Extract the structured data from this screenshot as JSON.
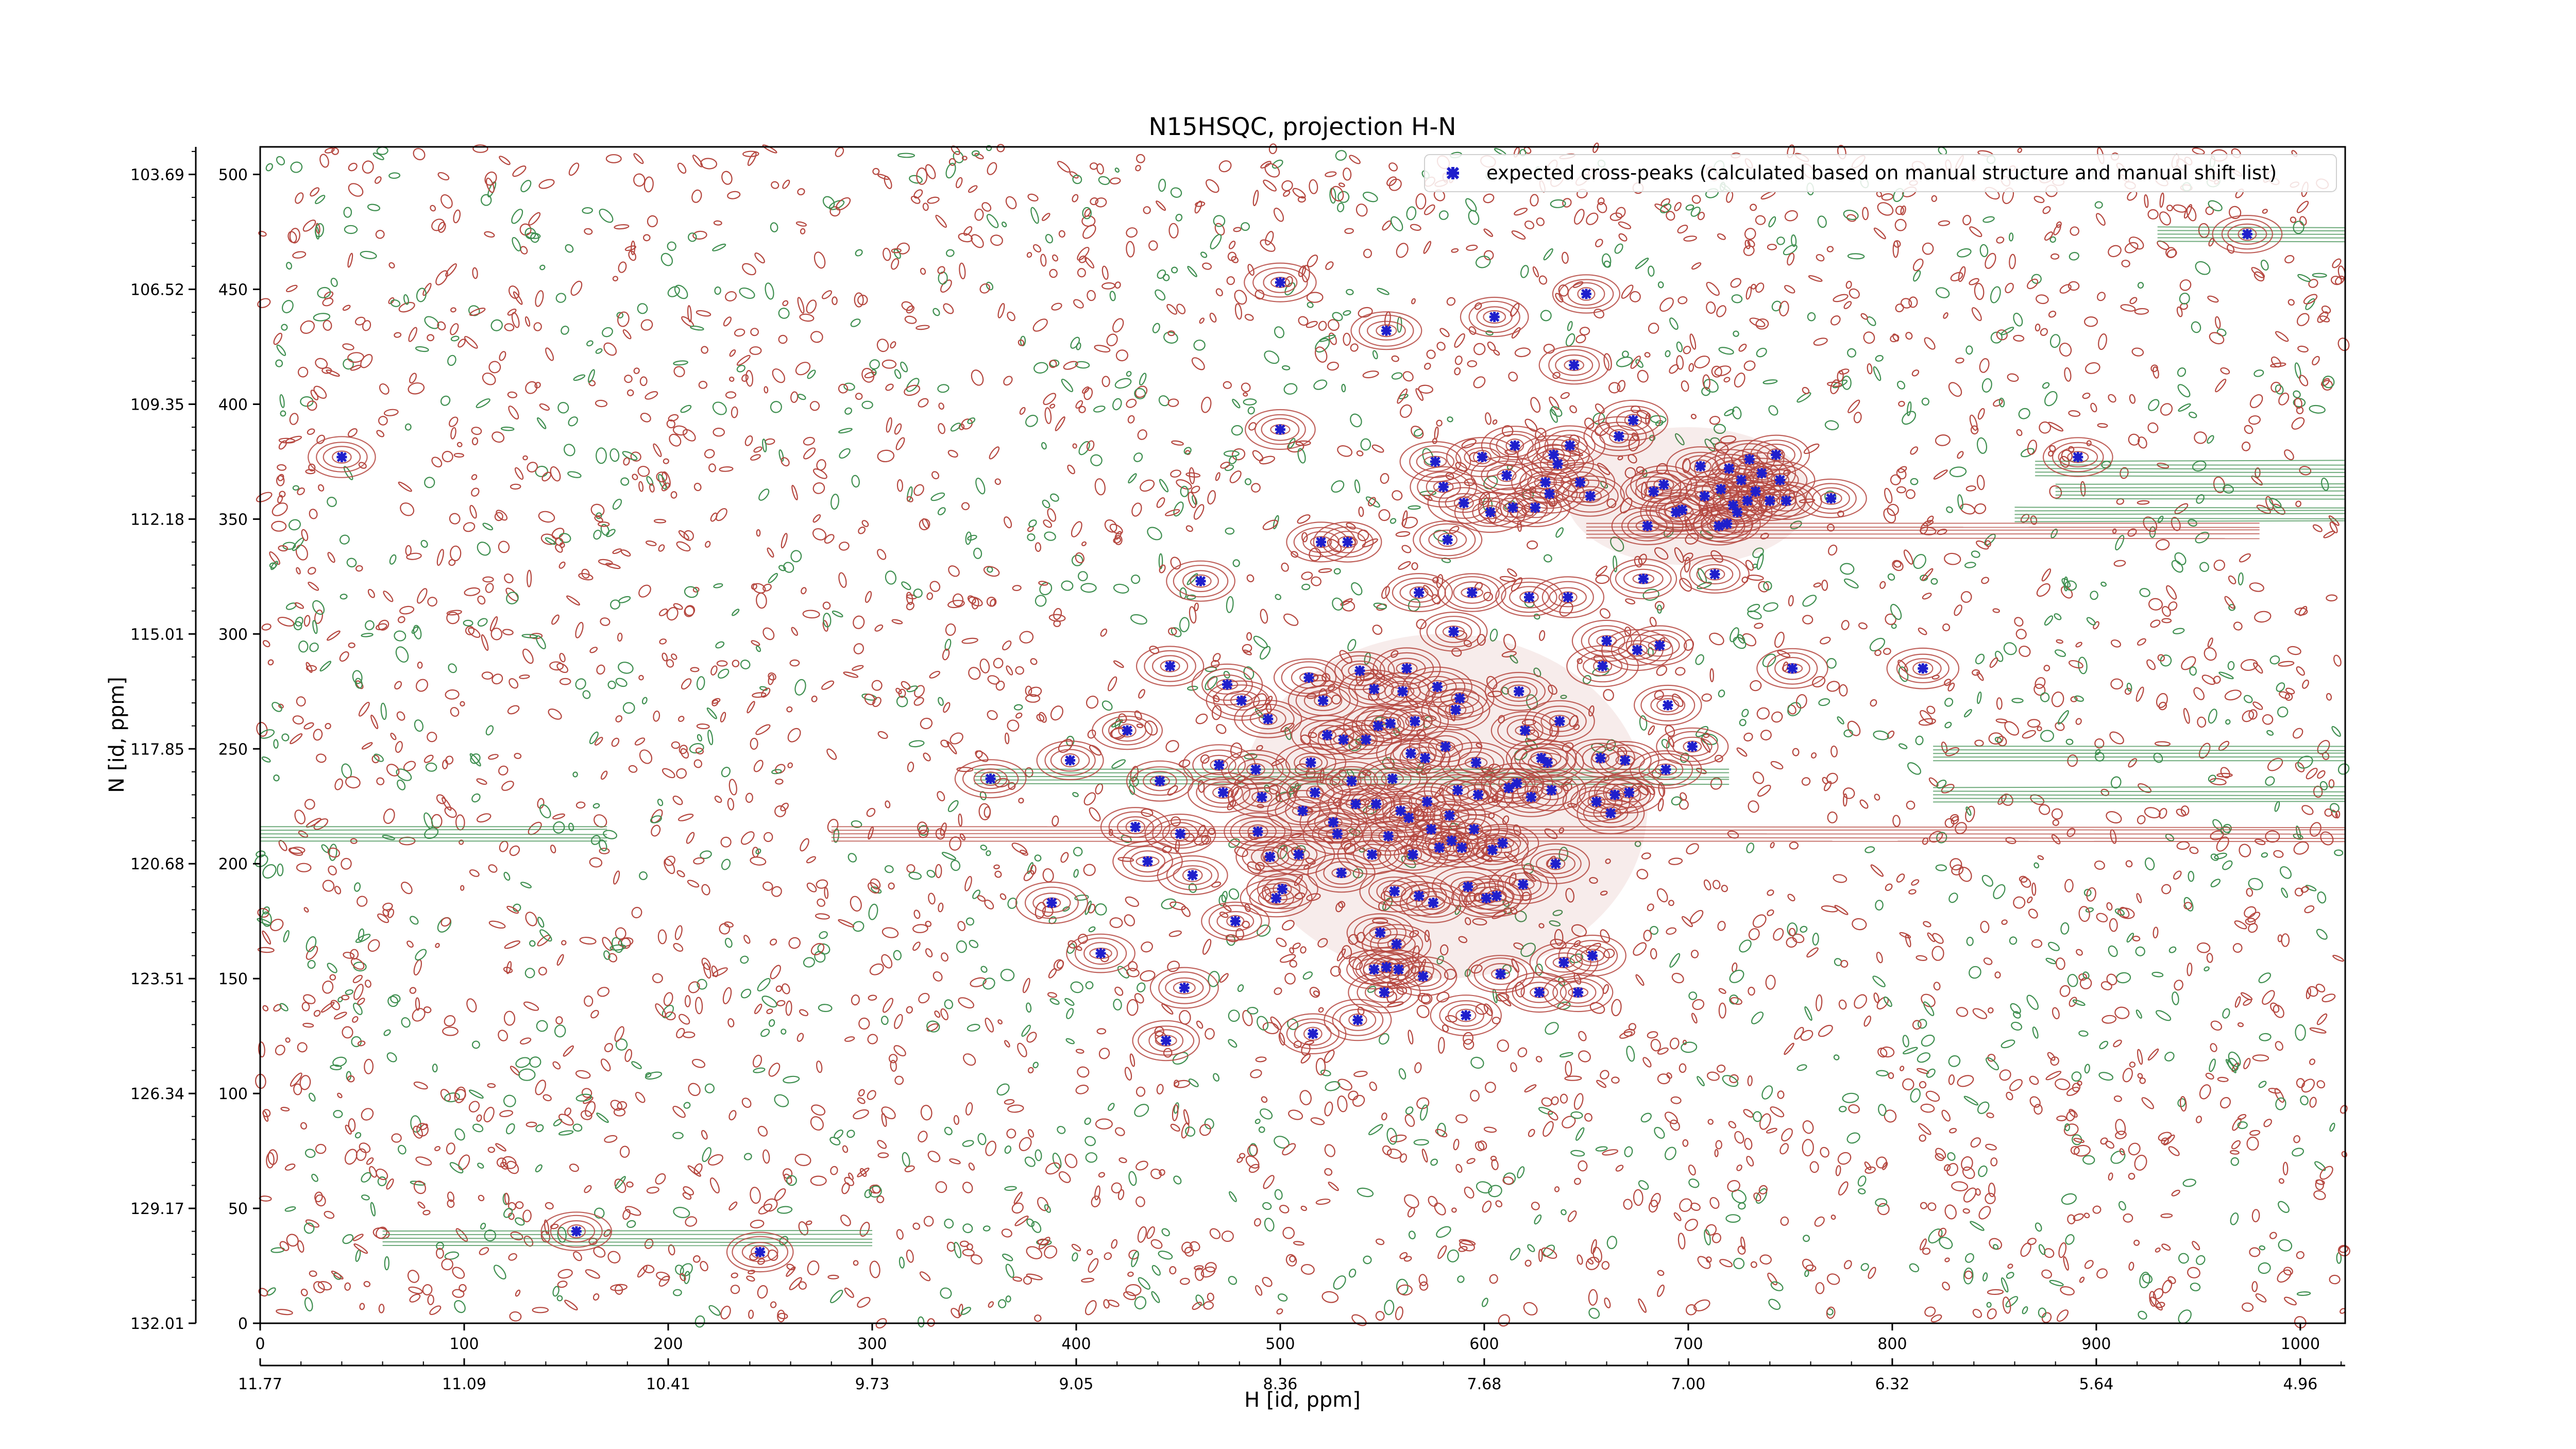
{
  "chart_data": {
    "type": "scatter",
    "title": "N15HSQC, projection H-N",
    "xlabel": "H [id, ppm]",
    "ylabel": "N [id, ppm]",
    "x_index_range": [
      0,
      1022
    ],
    "y_index_range": [
      0,
      512
    ],
    "x_ticks": [
      0,
      100,
      200,
      300,
      400,
      500,
      600,
      700,
      800,
      900,
      1000
    ],
    "y_ticks": [
      0,
      50,
      100,
      150,
      200,
      250,
      300,
      350,
      400,
      450,
      500
    ],
    "x_ppm_ticks": [
      "11.77",
      "11.09",
      "10.41",
      "9.73",
      "9.05",
      "8.36",
      "7.68",
      "7.00",
      "6.32",
      "5.64",
      "4.96"
    ],
    "y_ppm_ticks": [
      "132.01",
      "129.17",
      "126.34",
      "123.51",
      "120.68",
      "117.85",
      "115.01",
      "112.18",
      "109.35",
      "106.52",
      "103.69"
    ],
    "legend": {
      "position": "top-right",
      "label": "expected cross-peaks (calculated based on manual structure and manual shift list)",
      "marker_color": "#1f1fcc"
    },
    "colors": {
      "positive_contour": "#b5473f",
      "negative_contour": "#3f8f50",
      "peak_marker": "#1f1fcc"
    },
    "series": [
      {
        "name": "expected cross-peaks (calculated based on manual structure and manual shift list)",
        "points": [
          [
            40,
            377
          ],
          [
            155,
            40
          ],
          [
            245,
            31
          ],
          [
            358,
            237
          ],
          [
            388,
            183
          ],
          [
            397,
            245
          ],
          [
            412,
            161
          ],
          [
            425,
            258
          ],
          [
            429,
            216
          ],
          [
            435,
            201
          ],
          [
            441,
            236
          ],
          [
            444,
            123
          ],
          [
            446,
            286
          ],
          [
            451,
            213
          ],
          [
            453,
            146
          ],
          [
            457,
            195
          ],
          [
            461,
            323
          ],
          [
            470,
            243
          ],
          [
            472,
            231
          ],
          [
            474,
            278
          ],
          [
            478,
            175
          ],
          [
            481,
            271
          ],
          [
            488,
            241
          ],
          [
            489,
            214
          ],
          [
            491,
            229
          ],
          [
            494,
            263
          ],
          [
            495,
            203
          ],
          [
            498,
            185
          ],
          [
            500,
            453
          ],
          [
            500,
            389
          ],
          [
            501,
            189
          ],
          [
            509,
            204
          ],
          [
            511,
            223
          ],
          [
            514,
            281
          ],
          [
            515,
            244
          ],
          [
            516,
            126
          ],
          [
            517,
            231
          ],
          [
            520,
            340
          ],
          [
            521,
            271
          ],
          [
            523,
            256
          ],
          [
            526,
            218
          ],
          [
            528,
            213
          ],
          [
            530,
            196
          ],
          [
            531,
            254
          ],
          [
            533,
            340
          ],
          [
            535,
            236
          ],
          [
            537,
            226
          ],
          [
            538,
            132
          ],
          [
            539,
            284
          ],
          [
            542,
            254
          ],
          [
            545,
            204
          ],
          [
            546,
            154
          ],
          [
            546,
            276
          ],
          [
            547,
            226
          ],
          [
            548,
            260
          ],
          [
            549,
            170
          ],
          [
            551,
            144
          ],
          [
            552,
            432
          ],
          [
            552,
            155
          ],
          [
            553,
            212
          ],
          [
            554,
            261
          ],
          [
            555,
            237
          ],
          [
            556,
            188
          ],
          [
            557,
            165
          ],
          [
            558,
            154
          ],
          [
            559,
            223
          ],
          [
            560,
            275
          ],
          [
            562,
            285
          ],
          [
            563,
            220
          ],
          [
            564,
            248
          ],
          [
            565,
            204
          ],
          [
            566,
            262
          ],
          [
            568,
            318
          ],
          [
            568,
            186
          ],
          [
            570,
            151
          ],
          [
            571,
            246
          ],
          [
            572,
            227
          ],
          [
            574,
            215
          ],
          [
            575,
            183
          ],
          [
            576,
            375
          ],
          [
            577,
            277
          ],
          [
            578,
            207
          ],
          [
            580,
            364
          ],
          [
            581,
            251
          ],
          [
            582,
            341
          ],
          [
            583,
            221
          ],
          [
            584,
            210
          ],
          [
            585,
            301
          ],
          [
            586,
            267
          ],
          [
            587,
            232
          ],
          [
            588,
            272
          ],
          [
            589,
            207
          ],
          [
            590,
            357
          ],
          [
            591,
            134
          ],
          [
            592,
            190
          ],
          [
            594,
            318
          ],
          [
            595,
            215
          ],
          [
            596,
            244
          ],
          [
            597,
            230
          ],
          [
            599,
            377
          ],
          [
            601,
            185
          ],
          [
            603,
            353
          ],
          [
            604,
            206
          ],
          [
            605,
            438
          ],
          [
            606,
            186
          ],
          [
            608,
            152
          ],
          [
            609,
            209
          ],
          [
            611,
            369
          ],
          [
            612,
            233
          ],
          [
            614,
            355
          ],
          [
            615,
            382
          ],
          [
            616,
            235
          ],
          [
            617,
            275
          ],
          [
            619,
            191
          ],
          [
            620,
            258
          ],
          [
            622,
            316
          ],
          [
            623,
            229
          ],
          [
            625,
            355
          ],
          [
            627,
            144
          ],
          [
            628,
            246
          ],
          [
            630,
            366
          ],
          [
            631,
            244
          ],
          [
            632,
            361
          ],
          [
            633,
            232
          ],
          [
            634,
            378
          ],
          [
            635,
            200
          ],
          [
            636,
            374
          ],
          [
            637,
            262
          ],
          [
            639,
            157
          ],
          [
            641,
            316
          ],
          [
            642,
            382
          ],
          [
            644,
            417
          ],
          [
            646,
            144
          ],
          [
            647,
            366
          ],
          [
            650,
            448
          ],
          [
            652,
            360
          ],
          [
            653,
            160
          ],
          [
            655,
            227
          ],
          [
            657,
            246
          ],
          [
            658,
            286
          ],
          [
            660,
            297
          ],
          [
            662,
            222
          ],
          [
            664,
            230
          ],
          [
            666,
            386
          ],
          [
            669,
            245
          ],
          [
            671,
            231
          ],
          [
            673,
            393
          ],
          [
            675,
            293
          ],
          [
            678,
            324
          ],
          [
            680,
            347
          ],
          [
            683,
            362
          ],
          [
            686,
            295
          ],
          [
            688,
            365
          ],
          [
            689,
            241
          ],
          [
            690,
            269
          ],
          [
            694,
            353
          ],
          [
            697,
            354
          ],
          [
            702,
            251
          ],
          [
            706,
            373
          ],
          [
            708,
            360
          ],
          [
            713,
            326
          ],
          [
            715,
            347
          ],
          [
            716,
            363
          ],
          [
            719,
            348
          ],
          [
            720,
            372
          ],
          [
            722,
            356
          ],
          [
            724,
            353
          ],
          [
            726,
            367
          ],
          [
            729,
            358
          ],
          [
            730,
            376
          ],
          [
            733,
            362
          ],
          [
            736,
            370
          ],
          [
            740,
            358
          ],
          [
            743,
            378
          ],
          [
            745,
            367
          ],
          [
            748,
            358
          ],
          [
            751,
            285
          ],
          [
            770,
            359
          ],
          [
            815,
            285
          ],
          [
            891,
            377
          ],
          [
            974,
            474
          ]
        ]
      }
    ]
  }
}
